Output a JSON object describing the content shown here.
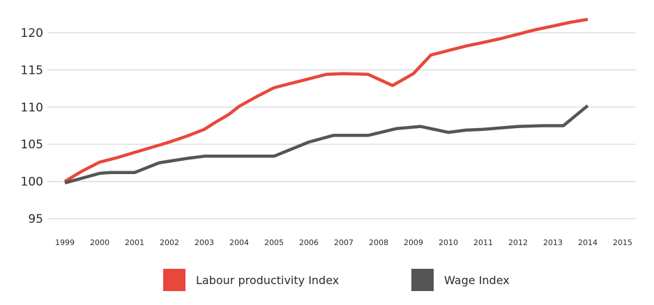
{
  "chart_data": {
    "type": "line",
    "title": "",
    "xlabel": "",
    "ylabel": "",
    "ylim": [
      95,
      122
    ],
    "yticks": [
      "95",
      "100",
      "105",
      "110",
      "115",
      "120"
    ],
    "xticks": [
      "1999",
      "2000",
      "2001",
      "2002",
      "2003",
      "2004",
      "2005",
      "2006",
      "2007",
      "2008",
      "2009",
      "2010",
      "2011",
      "2012",
      "2013",
      "2014",
      "2015"
    ],
    "grid": true,
    "legend_position": "bottom",
    "series": [
      {
        "name": "Labour productivity Index",
        "color": "#e8473b",
        "points": [
          [
            1999.0,
            100.0
          ],
          [
            1999.5,
            101.4
          ],
          [
            2000.0,
            102.6
          ],
          [
            2000.5,
            103.2
          ],
          [
            2001.0,
            103.9
          ],
          [
            2001.5,
            104.6
          ],
          [
            2002.0,
            105.3
          ],
          [
            2002.5,
            106.1
          ],
          [
            2003.0,
            107.0
          ],
          [
            2003.3,
            107.9
          ],
          [
            2003.7,
            109.0
          ],
          [
            2004.0,
            110.1
          ],
          [
            2004.5,
            111.4
          ],
          [
            2005.0,
            112.6
          ],
          [
            2005.5,
            113.2
          ],
          [
            2006.0,
            113.8
          ],
          [
            2006.5,
            114.4
          ],
          [
            2007.0,
            114.5
          ],
          [
            2007.7,
            114.4
          ],
          [
            2008.4,
            112.9
          ],
          [
            2009.0,
            114.5
          ],
          [
            2009.5,
            117.0
          ],
          [
            2010.0,
            117.6
          ],
          [
            2010.5,
            118.2
          ],
          [
            2011.0,
            118.7
          ],
          [
            2011.5,
            119.2
          ],
          [
            2012.0,
            119.8
          ],
          [
            2012.5,
            120.4
          ],
          [
            2013.0,
            120.9
          ],
          [
            2013.5,
            121.4
          ],
          [
            2014.0,
            121.8
          ]
        ]
      },
      {
        "name": "Wage Index",
        "color": "#555555",
        "points": [
          [
            1999.0,
            99.8
          ],
          [
            2000.0,
            101.1
          ],
          [
            2000.3,
            101.2
          ],
          [
            2001.0,
            101.2
          ],
          [
            2001.7,
            102.5
          ],
          [
            2002.5,
            103.1
          ],
          [
            2003.0,
            103.4
          ],
          [
            2004.0,
            103.4
          ],
          [
            2005.0,
            103.4
          ],
          [
            2006.0,
            105.3
          ],
          [
            2006.7,
            106.2
          ],
          [
            2007.0,
            106.2
          ],
          [
            2007.7,
            106.2
          ],
          [
            2008.5,
            107.1
          ],
          [
            2009.2,
            107.4
          ],
          [
            2010.0,
            106.6
          ],
          [
            2010.5,
            106.9
          ],
          [
            2011.0,
            107.0
          ],
          [
            2012.0,
            107.4
          ],
          [
            2012.7,
            107.5
          ],
          [
            2013.3,
            107.5
          ],
          [
            2014.0,
            110.2
          ]
        ]
      }
    ]
  }
}
